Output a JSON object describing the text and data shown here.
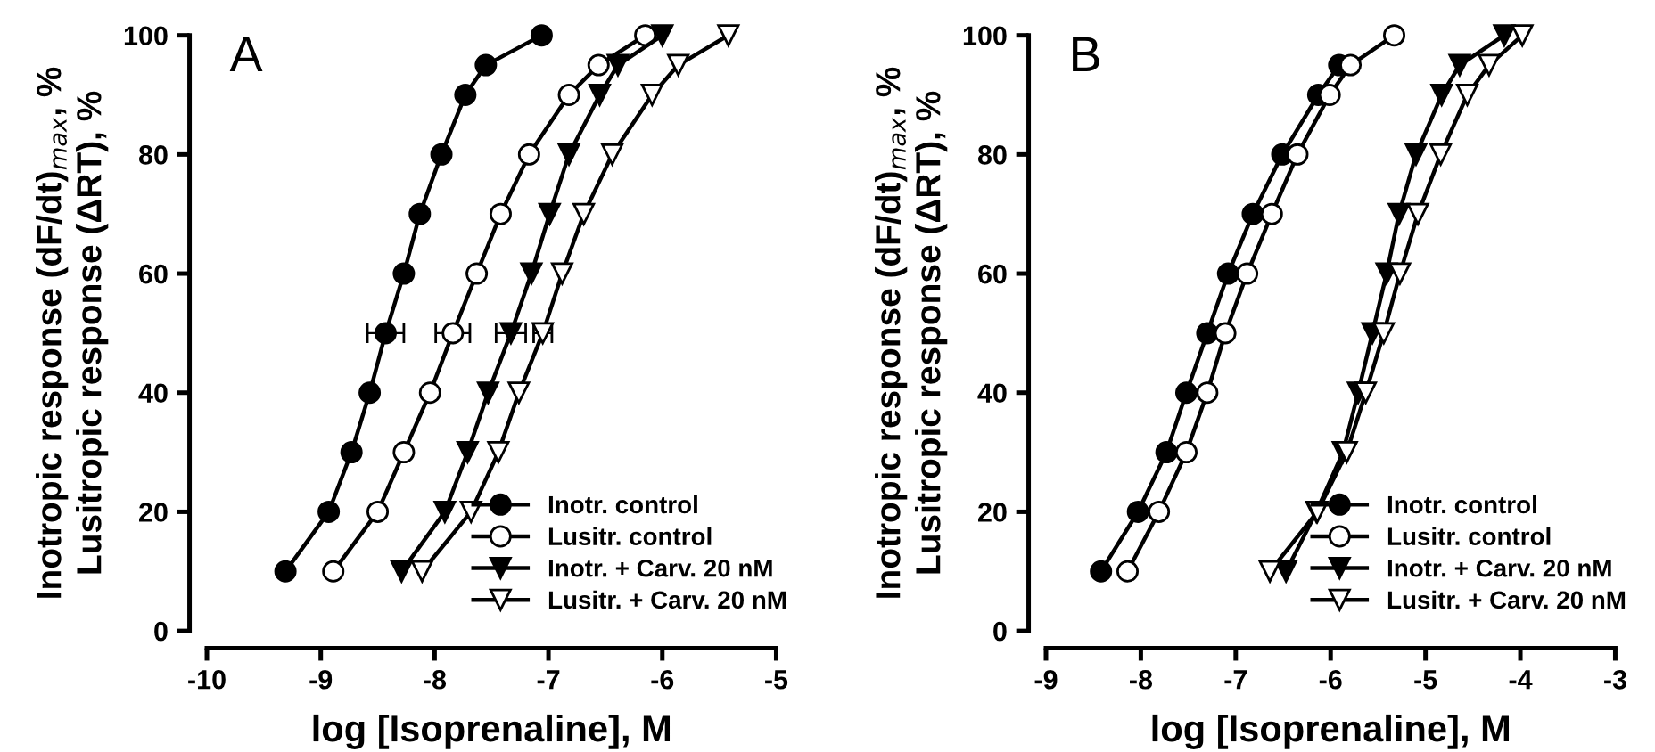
{
  "chart_data": [
    {
      "type": "line",
      "title": "A",
      "xlabel": "log [Isoprenaline], M",
      "ylabel": "Inotropic response (dF/dt)$_{max}$, %\nLusitropic response (ΔRT), %",
      "xlim": [
        -10,
        -5
      ],
      "xticks": [
        -10,
        -9,
        -8,
        -7,
        -6,
        -5
      ],
      "ylim": [
        0,
        100
      ],
      "yticks": [
        0,
        20,
        40,
        60,
        80,
        100
      ],
      "grid": false,
      "legend": "lower right",
      "series": [
        {
          "name": "Inotr. control",
          "color": "#000000",
          "marker": "circle",
          "x": [
            -9.31,
            -8.93,
            -8.73,
            -8.57,
            -8.43,
            -8.27,
            -8.13,
            -7.94,
            -7.73,
            -7.55,
            -7.06
          ],
          "values": [
            10,
            20,
            30,
            40,
            50,
            60,
            70,
            80,
            90,
            95,
            100
          ],
          "xerrors": [
            null,
            null,
            null,
            null,
            0.16,
            null,
            null,
            null,
            null,
            null,
            null
          ]
        },
        {
          "name": "Lusitr. control",
          "color": "#ffffff",
          "marker": "circle",
          "x": [
            -8.89,
            -8.5,
            -8.27,
            -8.04,
            -7.84,
            -7.63,
            -7.42,
            -7.17,
            -6.82,
            -6.56,
            -6.15
          ],
          "values": [
            10,
            20,
            30,
            40,
            50,
            60,
            70,
            80,
            90,
            95,
            100
          ],
          "xerrors": [
            null,
            null,
            null,
            null,
            0.15,
            null,
            null,
            null,
            null,
            null,
            null
          ]
        },
        {
          "name": "Inotr. + Carv. 20 nM",
          "color": "#000000",
          "marker": "triangle",
          "x": [
            -8.29,
            -7.91,
            -7.71,
            -7.53,
            -7.33,
            -7.15,
            -6.99,
            -6.82,
            -6.55,
            -6.39,
            -6.0
          ],
          "values": [
            10,
            20,
            30,
            40,
            50,
            60,
            70,
            80,
            90,
            95,
            100
          ],
          "xerrors": [
            null,
            null,
            null,
            null,
            0.13,
            null,
            null,
            null,
            null,
            null,
            null
          ]
        },
        {
          "name": "Lusitr. + Carv. 20 nM",
          "color": "#ffffff",
          "marker": "triangle",
          "x": [
            -8.11,
            -7.68,
            -7.44,
            -7.26,
            -7.05,
            -6.88,
            -6.69,
            -6.44,
            -6.09,
            -5.86,
            -5.42
          ],
          "values": [
            10,
            20,
            30,
            40,
            50,
            60,
            70,
            80,
            90,
            95,
            100
          ],
          "xerrors": [
            null,
            null,
            null,
            null,
            0.08,
            null,
            null,
            null,
            null,
            null,
            null
          ]
        }
      ]
    },
    {
      "type": "line",
      "title": "B",
      "xlabel": "log [Isoprenaline], M",
      "ylabel": "Inotropic response (dF/dt)$_{max}$, %\nLusitropic response (ΔRT), %",
      "xlim": [
        -9,
        -3
      ],
      "xticks": [
        -9,
        -8,
        -7,
        -6,
        -5,
        -4,
        -3
      ],
      "ylim": [
        0,
        100
      ],
      "yticks": [
        0,
        20,
        40,
        60,
        80,
        100
      ],
      "grid": false,
      "legend": "lower right",
      "series": [
        {
          "name": "Inotr. control",
          "color": "#000000",
          "marker": "circle",
          "x": [
            -8.42,
            -8.03,
            -7.73,
            -7.52,
            -7.3,
            -7.08,
            -6.82,
            -6.51,
            -6.13,
            -5.91
          ],
          "values": [
            10,
            20,
            30,
            40,
            50,
            60,
            70,
            80,
            90,
            95
          ]
        },
        {
          "name": "Lusitr. control",
          "color": "#ffffff",
          "marker": "circle",
          "x": [
            -8.14,
            -7.81,
            -7.52,
            -7.3,
            -7.11,
            -6.88,
            -6.62,
            -6.35,
            -6.01,
            -5.79,
            -5.33
          ],
          "values": [
            10,
            20,
            30,
            40,
            50,
            60,
            70,
            80,
            90,
            95,
            100
          ]
        },
        {
          "name": "Inotr. + Carv. 20 nM",
          "color": "#000000",
          "marker": "triangle",
          "x": [
            -6.47,
            -6.15,
            -5.87,
            -5.71,
            -5.56,
            -5.41,
            -5.28,
            -5.1,
            -4.83,
            -4.64,
            -4.17
          ],
          "values": [
            10,
            20,
            30,
            40,
            50,
            60,
            70,
            80,
            90,
            95,
            100
          ]
        },
        {
          "name": "Lusitr. + Carv. 20 nM",
          "color": "#ffffff",
          "marker": "triangle",
          "x": [
            -6.64,
            -6.14,
            -5.83,
            -5.63,
            -5.44,
            -5.27,
            -5.08,
            -4.84,
            -4.56,
            -4.33,
            -3.98
          ],
          "values": [
            10,
            20,
            30,
            40,
            50,
            60,
            70,
            80,
            90,
            95,
            100
          ]
        }
      ]
    }
  ]
}
